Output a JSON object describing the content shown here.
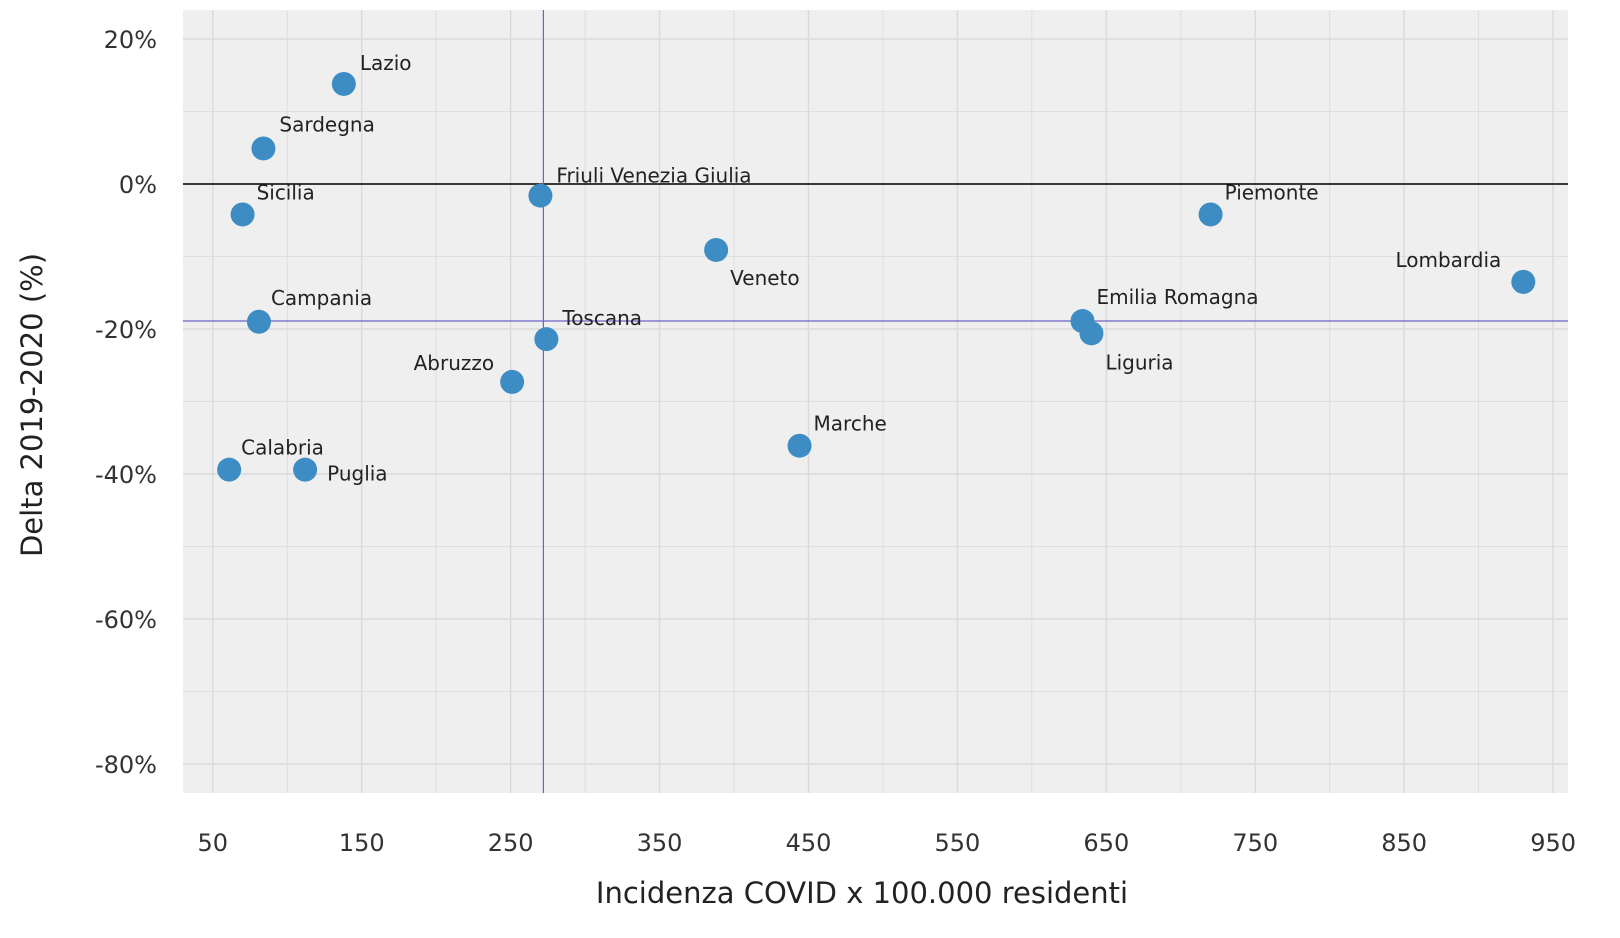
{
  "chart_data": {
    "type": "scatter",
    "title": "",
    "xlabel": "Incidenza COVID x 100.000 residenti",
    "ylabel": "Delta 2019-2020 (%)",
    "xlim": [
      30,
      960
    ],
    "ylim": [
      -84,
      24
    ],
    "x_ticks": [
      50,
      150,
      250,
      350,
      450,
      550,
      650,
      750,
      850,
      950
    ],
    "x_tick_labels": [
      "50",
      "150",
      "250",
      "350",
      "450",
      "550",
      "650",
      "750",
      "850",
      "950"
    ],
    "y_ticks": [
      20,
      0,
      -20,
      -40,
      -60,
      -80
    ],
    "y_tick_labels": [
      "20%",
      "0%",
      "-20%",
      "-40%",
      "-60%",
      "-80%"
    ],
    "grid": true,
    "reference_lines": {
      "horizontal_zero": 0,
      "horizontal_mean": -18.9,
      "vertical_mean": 272
    },
    "colors": {
      "point": "#3D8CC4",
      "panel": "#EFEFEF",
      "grid": "#DADADA",
      "zero_line": "#000000",
      "mean_line": "#6B63C7"
    },
    "points": [
      {
        "label": "Lazio",
        "x": 138,
        "y": 13.8
      },
      {
        "label": "Sardegna",
        "x": 84,
        "y": 4.9
      },
      {
        "label": "Sicilia",
        "x": 70,
        "y": -4.2
      },
      {
        "label": "Friuli Venezia Giulia",
        "x": 270,
        "y": -1.6
      },
      {
        "label": "Veneto",
        "x": 388,
        "y": -9.1
      },
      {
        "label": "Piemonte",
        "x": 720,
        "y": -4.2
      },
      {
        "label": "Lombardia",
        "x": 930,
        "y": -13.5
      },
      {
        "label": "Campania",
        "x": 81,
        "y": -19.0
      },
      {
        "label": "Toscana",
        "x": 274,
        "y": -21.4
      },
      {
        "label": "Emilia Romagna",
        "x": 634,
        "y": -18.9
      },
      {
        "label": "Liguria",
        "x": 640,
        "y": -20.6
      },
      {
        "label": "Abruzzo",
        "x": 251,
        "y": -27.3
      },
      {
        "label": "Marche",
        "x": 444,
        "y": -36.1
      },
      {
        "label": "Calabria",
        "x": 61,
        "y": -39.4
      },
      {
        "label": "Puglia",
        "x": 112,
        "y": -39.4
      }
    ]
  }
}
